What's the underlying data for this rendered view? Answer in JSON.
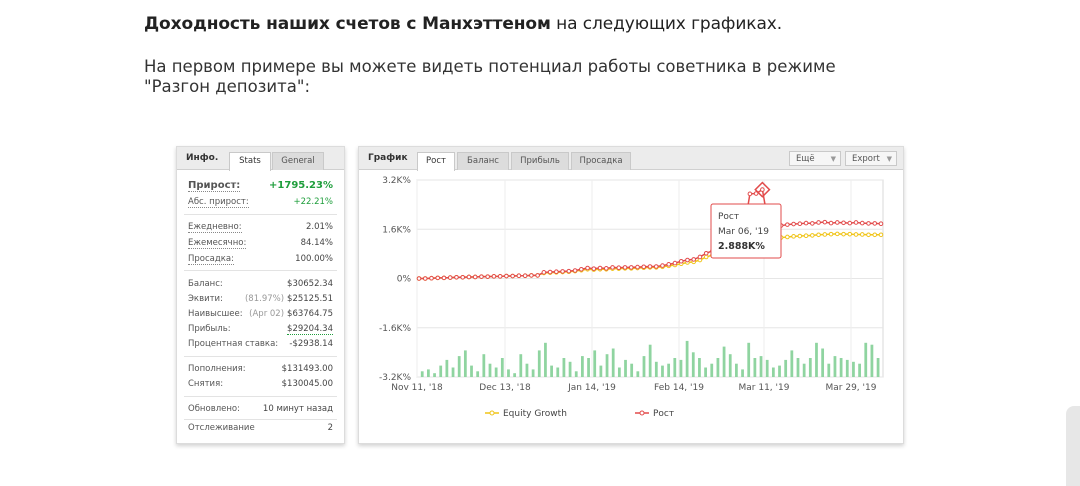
{
  "headline": {
    "bold": "Доходность наших счетов с Манхэттеном",
    "rest": " на следующих графиках."
  },
  "paragraph": "На первом примере вы можете видеть потенциал работы советника в режиме \"Разгон депозита\":",
  "info_panel": {
    "title": "Инфо.",
    "tabs": [
      "Stats",
      "General"
    ],
    "growth_label": "Прирост:",
    "growth_value": "+1795.23%",
    "abs_growth_label": "Абс. прирост:",
    "abs_growth_value": "+22.21%",
    "daily_label": "Ежедневно:",
    "daily_value": "2.01%",
    "monthly_label": "Ежемесячно:",
    "monthly_value": "84.14%",
    "drawdown_label": "Просадка:",
    "drawdown_value": "100.00%",
    "balance_label": "Баланс:",
    "balance_value": "$30652.34",
    "equity_label": "Эквити:",
    "equity_pct": "(81.97%)",
    "equity_value": "$25125.51",
    "highest_label": "Наивысшее:",
    "highest_date": "(Apr 02)",
    "highest_value": "$63764.75",
    "profit_label": "Прибыль:",
    "profit_value": "$29204.34",
    "interest_label": "Процентная ставка:",
    "interest_value": "-$2938.14",
    "deposits_label": "Пополнения:",
    "deposits_value": "$131493.00",
    "withdrawals_label": "Снятия:",
    "withdrawals_value": "$130045.00",
    "updated_label": "Обновлено:",
    "updated_value": "10 минут назад",
    "tracking_label": "Отслеживание",
    "tracking_value": "2"
  },
  "chart_panel": {
    "title": "График",
    "tabs": [
      "Рост",
      "Баланс",
      "Прибыль",
      "Просадка"
    ],
    "more_label": "Ещё",
    "export_label": "Export"
  },
  "tooltip": {
    "series": "Рост",
    "date": "Mar 06, '19",
    "value": "2.888K%"
  },
  "colors": {
    "growth": "#e24b4b",
    "equity": "#f0c419",
    "bars": "#8fd4a0",
    "positive": "#1f9e3c"
  },
  "chart_data": {
    "type": "line",
    "ylim": [
      -3200,
      3200
    ],
    "y_ticks": [
      "3.2K%",
      "1.6K%",
      "0%",
      "-1.6K%",
      "-3.2K%"
    ],
    "x_ticks": [
      "Nov 11, '18",
      "Dec 13, '18",
      "Jan 14, '19",
      "Feb 14, '19",
      "Mar 11, '19",
      "Mar 29, '19"
    ],
    "legend": [
      "Equity Growth",
      "Рост"
    ],
    "series": [
      {
        "name": "Рост",
        "values": [
          0,
          0,
          10,
          20,
          20,
          30,
          40,
          40,
          50,
          50,
          60,
          60,
          70,
          70,
          80,
          80,
          90,
          90,
          100,
          100,
          200,
          210,
          220,
          230,
          240,
          260,
          300,
          340,
          320,
          340,
          330,
          360,
          350,
          360,
          360,
          370,
          380,
          390,
          390,
          420,
          460,
          500,
          560,
          600,
          620,
          700,
          820,
          900,
          960,
          1050,
          1080,
          1200,
          1500,
          2750,
          2760,
          2888,
          1740,
          1750,
          1720,
          1750,
          1770,
          1780,
          1800,
          1790,
          1820,
          1830,
          1800,
          1820,
          1810,
          1800,
          1820,
          1800,
          1790,
          1790,
          1780
        ],
        "color": "#e24b4b"
      },
      {
        "name": "Equity Growth",
        "values": [
          0,
          0,
          10,
          20,
          20,
          30,
          40,
          40,
          50,
          50,
          60,
          60,
          70,
          70,
          80,
          80,
          90,
          90,
          100,
          100,
          180,
          190,
          200,
          210,
          220,
          240,
          270,
          300,
          290,
          300,
          300,
          320,
          320,
          330,
          330,
          340,
          350,
          360,
          360,
          380,
          410,
          440,
          480,
          520,
          540,
          600,
          700,
          760,
          800,
          860,
          900,
          1000,
          1180,
          1250,
          1260,
          1280,
          1300,
          1320,
          1330,
          1350,
          1370,
          1380,
          1390,
          1400,
          1420,
          1430,
          1440,
          1450,
          1440,
          1440,
          1430,
          1430,
          1420,
          1420,
          1420
        ],
        "color": "#f0c419"
      }
    ],
    "volume_bars": [
      0.15,
      0.2,
      0.1,
      0.3,
      0.45,
      0.25,
      0.55,
      0.7,
      0.3,
      0.15,
      0.6,
      0.35,
      0.25,
      0.5,
      0.2,
      0.1,
      0.6,
      0.35,
      0.2,
      0.7,
      0.9,
      0.3,
      0.25,
      0.5,
      0.4,
      0.15,
      0.55,
      0.5,
      0.7,
      0.3,
      0.6,
      0.75,
      0.25,
      0.45,
      0.35,
      0.15,
      0.55,
      0.85,
      0.4,
      0.3,
      0.35,
      0.5,
      0.45,
      0.95,
      0.65,
      0.5,
      0.25,
      0.35,
      0.5,
      0.8,
      0.6,
      0.35,
      0.2,
      0.9,
      0.5,
      0.55,
      0.45,
      0.25,
      0.3,
      0.45,
      0.7,
      0.5,
      0.35,
      0.5,
      0.9,
      0.75,
      0.35,
      0.55,
      0.5,
      0.45,
      0.4,
      0.35,
      0.9,
      0.85,
      0.5
    ]
  }
}
